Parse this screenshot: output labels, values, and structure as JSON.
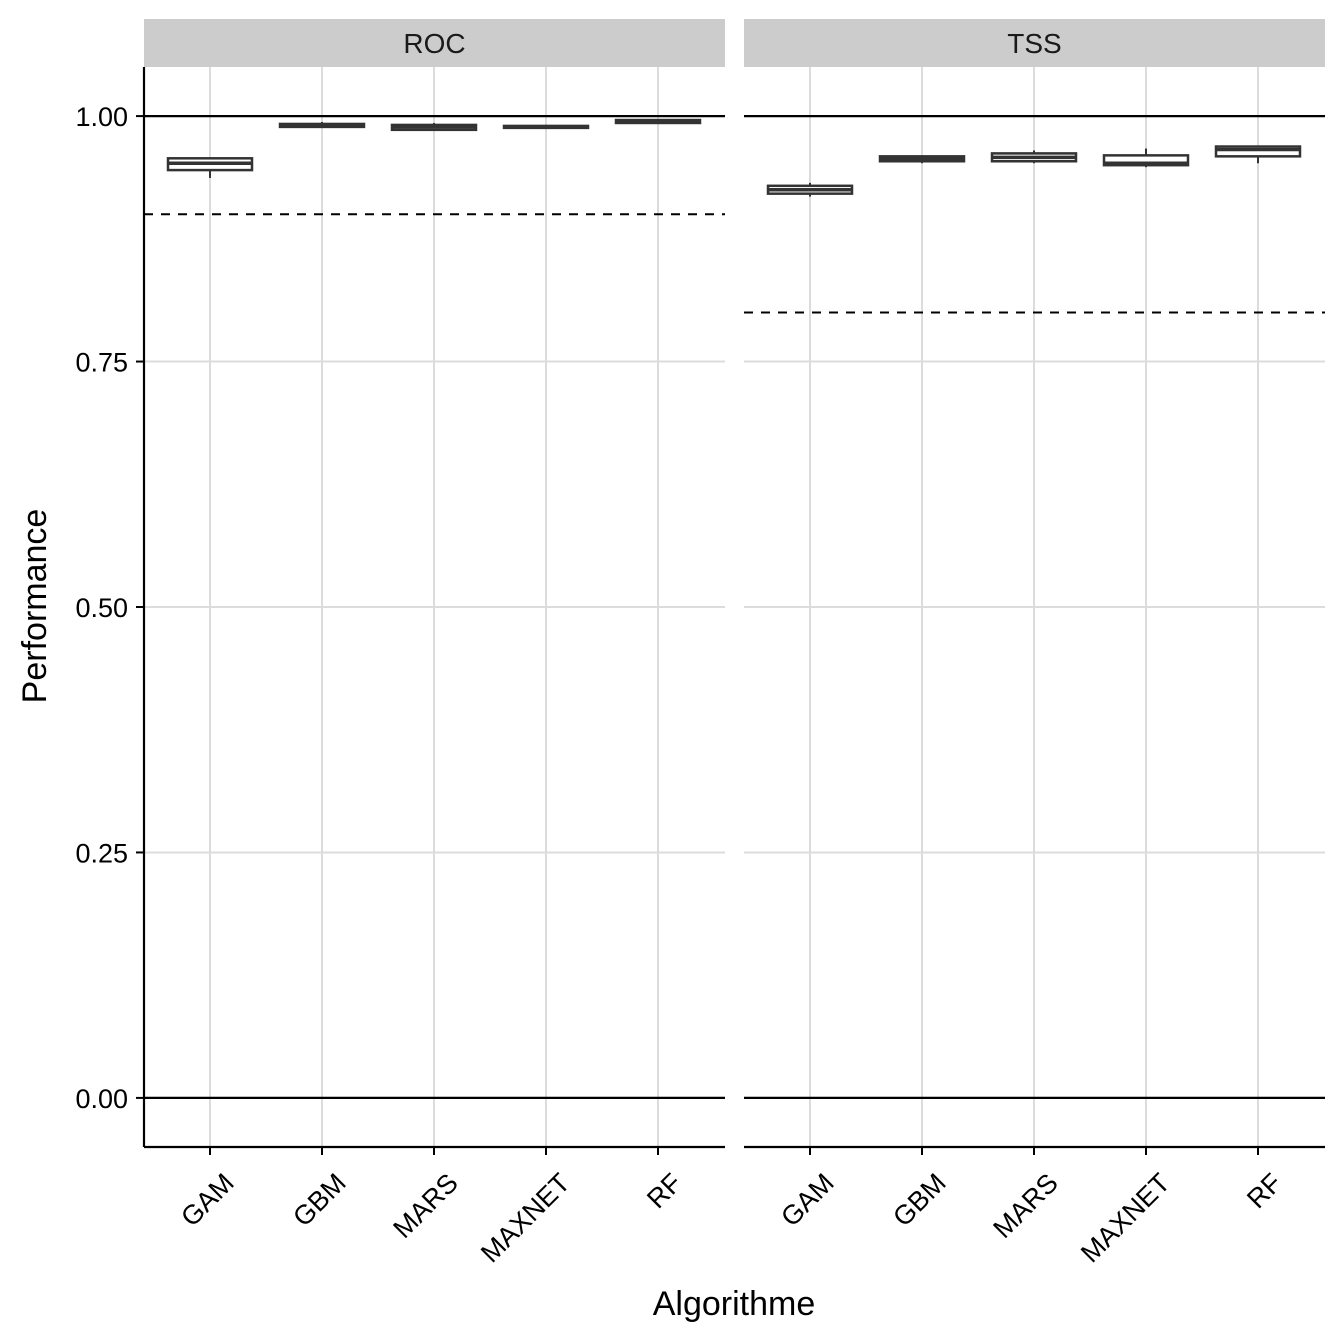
{
  "chart_data": {
    "type": "boxplot",
    "xlabel": "Algorithme",
    "ylabel": "Performance",
    "ylim": [
      -0.05,
      1.05
    ],
    "y_ticks": [
      "0.00",
      "0.25",
      "0.50",
      "0.75",
      "1.00"
    ],
    "y_tick_values": [
      0,
      0.25,
      0.5,
      0.75,
      1.0
    ],
    "categories": [
      "GAM",
      "GBM",
      "MARS",
      "MAXNET",
      "RF"
    ],
    "grid": true,
    "reference_lines_solid": [
      0,
      1
    ],
    "facets": [
      {
        "label": "ROC",
        "threshold": 0.9,
        "boxes": [
          {
            "category": "GAM",
            "min": 0.937,
            "q1": 0.945,
            "median": 0.952,
            "q3": 0.957,
            "max": 0.957
          },
          {
            "category": "GBM",
            "min": 0.988,
            "q1": 0.989,
            "median": 0.991,
            "q3": 0.992,
            "max": 0.994
          },
          {
            "category": "MARS",
            "min": 0.985,
            "q1": 0.986,
            "median": 0.989,
            "q3": 0.991,
            "max": 0.993
          },
          {
            "category": "MAXNET",
            "min": 0.987,
            "q1": 0.988,
            "median": 0.989,
            "q3": 0.99,
            "max": 0.991
          },
          {
            "category": "RF",
            "min": 0.992,
            "q1": 0.993,
            "median": 0.995,
            "q3": 0.996,
            "max": 0.997
          }
        ]
      },
      {
        "label": "TSS",
        "threshold": 0.8,
        "boxes": [
          {
            "category": "GAM",
            "min": 0.918,
            "q1": 0.921,
            "median": 0.925,
            "q3": 0.929,
            "max": 0.932
          },
          {
            "category": "GBM",
            "min": 0.952,
            "q1": 0.954,
            "median": 0.957,
            "q3": 0.959,
            "max": 0.96
          },
          {
            "category": "MARS",
            "min": 0.952,
            "q1": 0.954,
            "median": 0.958,
            "q3": 0.962,
            "max": 0.965
          },
          {
            "category": "MAXNET",
            "min": 0.948,
            "q1": 0.95,
            "median": 0.952,
            "q3": 0.96,
            "max": 0.967
          },
          {
            "category": "RF",
            "min": 0.952,
            "q1": 0.959,
            "median": 0.966,
            "q3": 0.969,
            "max": 0.969
          }
        ]
      }
    ]
  }
}
